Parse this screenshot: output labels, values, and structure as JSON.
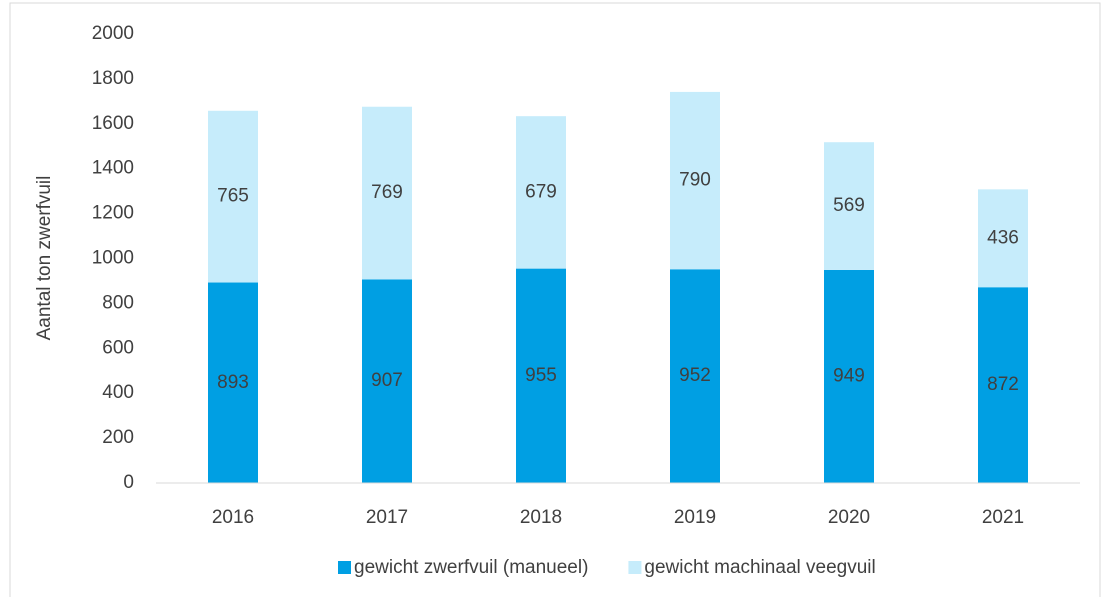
{
  "chart_data": {
    "type": "bar",
    "stacked": true,
    "y_label": "Aantal ton zwerfvuil",
    "categories": [
      "2016",
      "2017",
      "2018",
      "2019",
      "2020",
      "2021"
    ],
    "series": [
      {
        "name": "gewicht zwerfvuil (manueel)",
        "color": "#009fe3",
        "values": [
          893,
          907,
          955,
          952,
          949,
          872
        ]
      },
      {
        "name": "gewicht machinaal veegvuil",
        "color": "#c6ecfb",
        "values": [
          765,
          769,
          679,
          790,
          569,
          436
        ]
      }
    ],
    "ylim": [
      0,
      2000
    ],
    "yticks": [
      0,
      200,
      400,
      600,
      800,
      1000,
      1200,
      1400,
      1600,
      1800,
      2000
    ],
    "grid": false,
    "legend": "bottom"
  }
}
